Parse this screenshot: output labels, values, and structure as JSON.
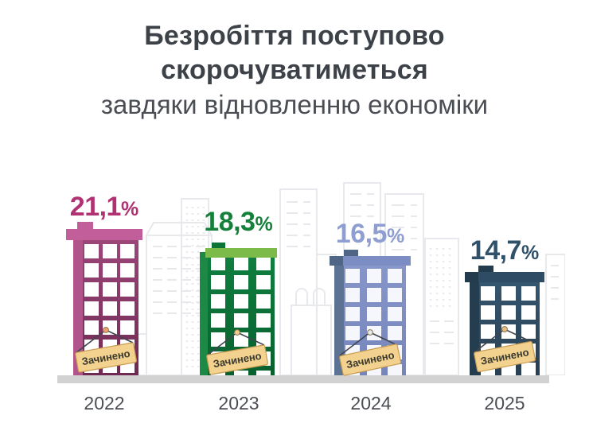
{
  "title": {
    "line1": "Безробіття поступово",
    "line2": "скорочуватиметься",
    "subtitle": "завдяки відновленню економіки"
  },
  "chart_data": {
    "type": "bar",
    "style": "pictorial-infographic (buildings as bars, closed-sign annotation on each)",
    "title": "Безробіття поступово скорочуватиметься завдяки відновленню економіки",
    "categories": [
      "2022",
      "2023",
      "2024",
      "2025"
    ],
    "values": [
      21.1,
      18.3,
      16.5,
      14.7
    ],
    "value_labels": [
      "21,1%",
      "18,3%",
      "16,5%",
      "14,7%"
    ],
    "unit": "%",
    "bar_colors": [
      "#7c2e5f",
      "#0d7a3a",
      "#8494c8",
      "#32536c"
    ],
    "annotation_per_bar": "Зачинено",
    "xlabel": "",
    "ylabel": "",
    "legend": "none",
    "grid": "off"
  },
  "buildings": [
    {
      "year": "2022",
      "value": "21,1",
      "suffix": "%",
      "sign": "Зачинено",
      "colors": {
        "label": "#b13273",
        "roof": "#c25f9b",
        "chimney": "#c25f9b",
        "strip": "#b2548c",
        "body": "#9c4679",
        "body2": "#6f2952",
        "window": "#ffffff",
        "nail": "#f0a26a"
      }
    },
    {
      "year": "2023",
      "value": "18,3",
      "suffix": "%",
      "sign": "Зачинено",
      "colors": {
        "label": "#15803a",
        "roof": "#7cba4a",
        "chimney": "#0d7438",
        "strip": "#1d8947",
        "body": "#108040",
        "body2": "#07602e",
        "window": "#ffffff",
        "nail": "#f3cf8f"
      }
    },
    {
      "year": "2024",
      "value": "16,5",
      "suffix": "%",
      "sign": "Зачинено",
      "colors": {
        "label": "#8f9ed0",
        "roof": "#7b8dc2",
        "chimney": "#4f6687",
        "strip": "#5d7394",
        "body": "#8696c9",
        "body2": "#7585ba",
        "window": "#f6f7fc",
        "nail": "#e7e7ee"
      }
    },
    {
      "year": "2025",
      "value": "14,7",
      "suffix": "%",
      "sign": "Зачинено",
      "colors": {
        "label": "#30516a",
        "roof": "#2e4d64",
        "chimney": "#223b4d",
        "strip": "#243e50",
        "body": "#35566f",
        "body2": "#293f52",
        "window": "#ffffff",
        "nail": "#e8bf82"
      }
    }
  ],
  "theme": {
    "background": "#ffffff",
    "ground": "#d2d2d2",
    "title": "#3d4249",
    "subtitle": "#4a4e54",
    "year": "#4b4f54",
    "sign_bg": "#f2d28e",
    "sign_border": "#c89c52",
    "sign_text": "#3a392f",
    "string": "#41454e",
    "skyline": "#e7e9ed"
  }
}
